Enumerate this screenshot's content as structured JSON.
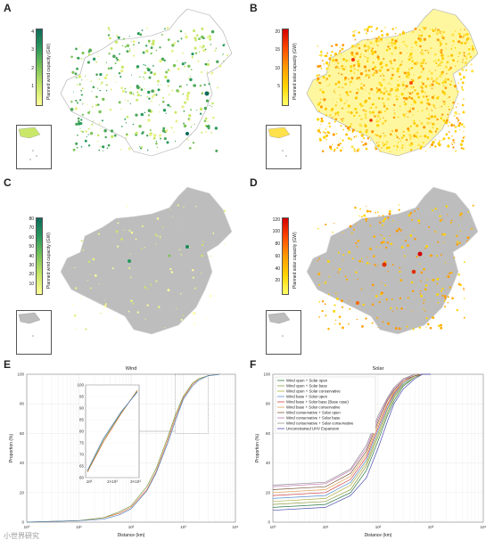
{
  "panels": {
    "A": {
      "label": "A",
      "legend_title": "Planned wind capacity (GW)",
      "ticks": [
        "1",
        "2",
        "3",
        "4"
      ]
    },
    "B": {
      "label": "B",
      "legend_title": "Planned solar capacity (GW)",
      "ticks": [
        "5",
        "10",
        "15",
        "20"
      ]
    },
    "C": {
      "label": "C",
      "legend_title": "Planned wind capacity (GW)",
      "ticks": [
        "10",
        "20",
        "30",
        "40",
        "50",
        "60",
        "70",
        "80"
      ]
    },
    "D": {
      "label": "D",
      "legend_title": "Planned solar capacity (GW)",
      "ticks": [
        "20",
        "40",
        "60",
        "80",
        "100",
        "120"
      ]
    },
    "E": {
      "label": "E"
    },
    "F": {
      "label": "F"
    }
  },
  "colors": {
    "wind_accent": "#1b8a5a",
    "solar_accent": "#e03000",
    "land_gray": "#bdbdbd"
  },
  "chart_data": [
    {
      "type": "line",
      "title": "Wind",
      "xlabel": "Distance (km)",
      "ylabel": "Proportion (%)",
      "xscale": "log",
      "xlim": [
        1,
        10000
      ],
      "ylim": [
        0,
        100
      ],
      "x_tick_labels": [
        "10⁰",
        "10¹",
        "10²",
        "10³",
        "10⁴"
      ],
      "y_tick_labels": [
        "0",
        "20",
        "40",
        "60",
        "80",
        "100"
      ],
      "grid": true,
      "x": [
        1,
        10,
        30,
        60,
        100,
        200,
        300,
        500,
        700,
        1000,
        1500,
        2000,
        3000,
        5000
      ],
      "series": [
        {
          "values": [
            0,
            1,
            3,
            6,
            10,
            22,
            34,
            55,
            70,
            84,
            93,
            97,
            99,
            100
          ]
        },
        {
          "values": [
            0,
            1,
            3,
            7,
            11,
            24,
            36,
            57,
            72,
            85,
            94,
            97,
            99,
            100
          ]
        },
        {
          "values": [
            0,
            1,
            2,
            5,
            9,
            21,
            33,
            53,
            68,
            83,
            92,
            96,
            99,
            100
          ]
        }
      ],
      "inset": {
        "x_tick_labels": [
          "10³",
          "2×10³",
          "3×10³"
        ],
        "y_tick_labels": [
          "60",
          "65",
          "70",
          "75",
          "80",
          "85",
          "90",
          "95",
          "100"
        ]
      }
    },
    {
      "type": "line",
      "title": "Solar",
      "xlabel": "Distance (km)",
      "ylabel": "Proportion (%)",
      "xscale": "log",
      "xlim": [
        1,
        10000
      ],
      "ylim": [
        0,
        100
      ],
      "x_tick_labels": [
        "10⁰",
        "10¹",
        "10²",
        "10³",
        "10⁴"
      ],
      "y_tick_labels": [
        "0",
        "20",
        "40",
        "60",
        "80",
        "100"
      ],
      "grid": true,
      "legend_position": "top-left",
      "x": [
        1,
        10,
        30,
        60,
        100,
        150,
        200,
        300,
        500,
        700,
        1000
      ],
      "series": [
        {
          "name": "Wind open + Solar open",
          "color": "#2f7a4a",
          "values": [
            10,
            12,
            20,
            35,
            55,
            72,
            82,
            92,
            98,
            100,
            100
          ]
        },
        {
          "name": "Wind open + Solar base",
          "color": "#8a9a3a",
          "values": [
            12,
            14,
            22,
            38,
            58,
            74,
            84,
            93,
            98,
            100,
            100
          ]
        },
        {
          "name": "Wind open + Solar conservative",
          "color": "#b0b040",
          "values": [
            14,
            16,
            25,
            40,
            60,
            76,
            85,
            94,
            99,
            100,
            100
          ]
        },
        {
          "name": "Wind base + Solar open",
          "color": "#5a8fd0",
          "values": [
            16,
            18,
            27,
            42,
            62,
            77,
            86,
            94,
            99,
            100,
            100
          ]
        },
        {
          "name": "Wind base + Solar base (Base case)",
          "color": "#d04040",
          "values": [
            18,
            20,
            29,
            44,
            64,
            79,
            87,
            95,
            99,
            100,
            100
          ]
        },
        {
          "name": "Wind base + Solar conservative",
          "color": "#e0a050",
          "values": [
            20,
            22,
            31,
            46,
            66,
            80,
            88,
            95,
            99,
            100,
            100
          ]
        },
        {
          "name": "Wind conservative + Solar open",
          "color": "#7a5a3a",
          "values": [
            22,
            24,
            33,
            48,
            68,
            82,
            89,
            96,
            99,
            100,
            100
          ]
        },
        {
          "name": "Wind conservative + Solar base",
          "color": "#c070b0",
          "values": [
            24,
            26,
            35,
            50,
            70,
            83,
            90,
            96,
            100,
            100,
            100
          ]
        },
        {
          "name": "Wind conservative + Solar conservative",
          "color": "#909090",
          "values": [
            25,
            27,
            36,
            52,
            72,
            84,
            91,
            97,
            100,
            100,
            100
          ]
        },
        {
          "name": "Unconstrained UHV Expansion",
          "color": "#4a4ab0",
          "values": [
            8,
            10,
            18,
            30,
            50,
            68,
            80,
            90,
            97,
            100,
            100
          ]
        }
      ]
    }
  ],
  "watermark": "小世界研究"
}
